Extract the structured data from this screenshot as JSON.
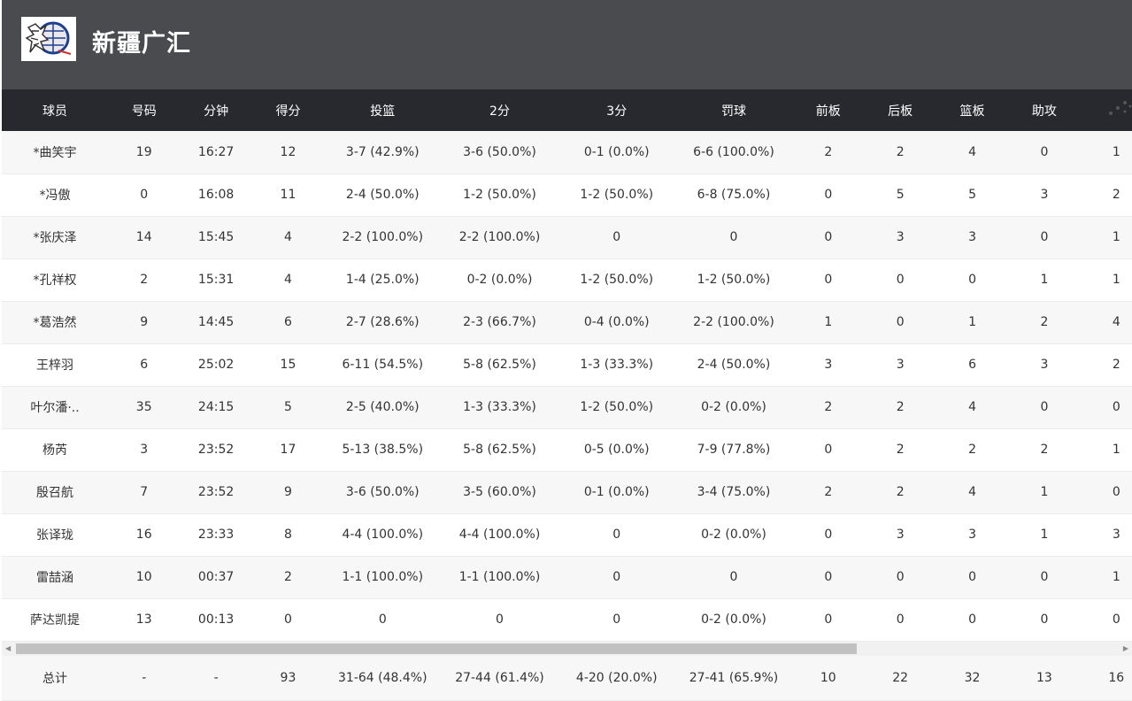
{
  "team": {
    "name": "新疆广汇",
    "logo": "team-logo"
  },
  "columns": [
    "球员",
    "号码",
    "分钟",
    "得分",
    "投篮",
    "2分",
    "3分",
    "罚球",
    "前板",
    "后板",
    "篮板",
    "助攻",
    ""
  ],
  "players": [
    [
      "*曲笑宇",
      "19",
      "16:27",
      "12",
      "3-7 (42.9%)",
      "3-6 (50.0%)",
      "0-1 (0.0%)",
      "6-6 (100.0%)",
      "2",
      "2",
      "4",
      "0",
      "1"
    ],
    [
      "*冯傲",
      "0",
      "16:08",
      "11",
      "2-4 (50.0%)",
      "1-2 (50.0%)",
      "1-2 (50.0%)",
      "6-8 (75.0%)",
      "0",
      "5",
      "5",
      "3",
      "2"
    ],
    [
      "*张庆泽",
      "14",
      "15:45",
      "4",
      "2-2 (100.0%)",
      "2-2 (100.0%)",
      "0",
      "0",
      "0",
      "3",
      "3",
      "0",
      "1"
    ],
    [
      "*孔祥权",
      "2",
      "15:31",
      "4",
      "1-4 (25.0%)",
      "0-2 (0.0%)",
      "1-2 (50.0%)",
      "1-2 (50.0%)",
      "0",
      "0",
      "0",
      "1",
      "1"
    ],
    [
      "*葛浩然",
      "9",
      "14:45",
      "6",
      "2-7 (28.6%)",
      "2-3 (66.7%)",
      "0-4 (0.0%)",
      "2-2 (100.0%)",
      "1",
      "0",
      "1",
      "2",
      "4"
    ],
    [
      "王梓羽",
      "6",
      "25:02",
      "15",
      "6-11 (54.5%)",
      "5-8 (62.5%)",
      "1-3 (33.3%)",
      "2-4 (50.0%)",
      "3",
      "3",
      "6",
      "3",
      "2"
    ],
    [
      "叶尔潘·..",
      "35",
      "24:15",
      "5",
      "2-5 (40.0%)",
      "1-3 (33.3%)",
      "1-2 (50.0%)",
      "0-2 (0.0%)",
      "2",
      "2",
      "4",
      "0",
      "0"
    ],
    [
      "杨芮",
      "3",
      "23:52",
      "17",
      "5-13 (38.5%)",
      "5-8 (62.5%)",
      "0-5 (0.0%)",
      "7-9 (77.8%)",
      "0",
      "2",
      "2",
      "2",
      "1"
    ],
    [
      "殷召航",
      "7",
      "23:52",
      "9",
      "3-6 (50.0%)",
      "3-5 (60.0%)",
      "0-1 (0.0%)",
      "3-4 (75.0%)",
      "2",
      "2",
      "4",
      "1",
      "0"
    ],
    [
      "张译珑",
      "16",
      "23:33",
      "8",
      "4-4 (100.0%)",
      "4-4 (100.0%)",
      "0",
      "0-2 (0.0%)",
      "0",
      "3",
      "3",
      "1",
      "3"
    ],
    [
      "雷喆涵",
      "10",
      "00:37",
      "2",
      "1-1 (100.0%)",
      "1-1 (100.0%)",
      "0",
      "0",
      "0",
      "0",
      "0",
      "0",
      "1"
    ],
    [
      "萨达凯提",
      "13",
      "00:13",
      "0",
      "0",
      "0",
      "0",
      "0-2 (0.0%)",
      "0",
      "0",
      "0",
      "0",
      "0"
    ]
  ],
  "totals": [
    "总计",
    "-",
    "-",
    "93",
    "31-64 (48.4%)",
    "27-44 (61.4%)",
    "4-20 (20.0%)",
    "27-41 (65.9%)",
    "10",
    "22",
    "32",
    "13",
    "16"
  ],
  "scroll": {
    "left_arrow": "◀",
    "right_arrow": "▶"
  }
}
